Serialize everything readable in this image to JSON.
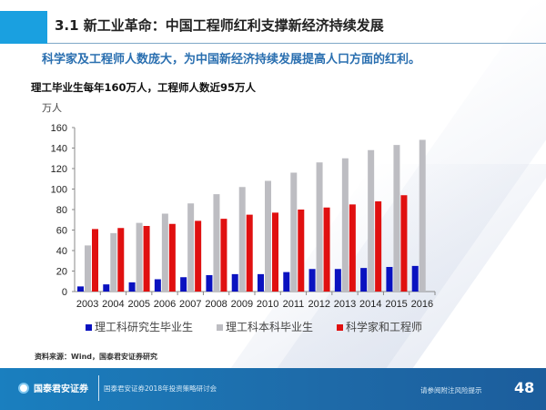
{
  "header": {
    "title": "3.1 新工业革命：中国工程师红利支撑新经济持续发展"
  },
  "subtitle": "科学家及工程师人数庞大，为中国新经济持续发展提高人口方面的红利。",
  "chart_data": {
    "type": "bar",
    "title": "理工毕业生每年160万人，工程师人数近95万人",
    "ylabel": "万人",
    "xlabel": "",
    "ylim": [
      0,
      160
    ],
    "yticks": [
      0,
      20,
      40,
      60,
      80,
      100,
      120,
      140,
      160
    ],
    "grid": false,
    "legend_position": "bottom",
    "categories": [
      "2003",
      "2004",
      "2005",
      "2006",
      "2007",
      "2008",
      "2009",
      "2010",
      "2011",
      "2012",
      "2013",
      "2014",
      "2015",
      "2016"
    ],
    "series": [
      {
        "name": "理工科研究生毕业生",
        "color": "#0a12c0",
        "values": [
          5,
          7,
          9,
          12,
          14,
          16,
          17,
          17,
          19,
          22,
          22,
          23,
          24,
          25
        ]
      },
      {
        "name": "理工科本科毕业生",
        "color": "#bdbdc2",
        "values": [
          45,
          57,
          67,
          76,
          86,
          95,
          102,
          108,
          116,
          126,
          130,
          138,
          143,
          148
        ]
      },
      {
        "name": "科学家和工程师",
        "color": "#e01010",
        "values": [
          61,
          62,
          64,
          66,
          69,
          71,
          75,
          77,
          80,
          82,
          85,
          88,
          94,
          null
        ]
      }
    ]
  },
  "source": "资料来源：Wind，国泰君安证券研究",
  "footer": {
    "logo_text": "国泰君安证券",
    "conference": "国泰君安证券2018年投资策略研讨会",
    "risk_note": "请参阅附注风险提示",
    "page_number": "48"
  }
}
